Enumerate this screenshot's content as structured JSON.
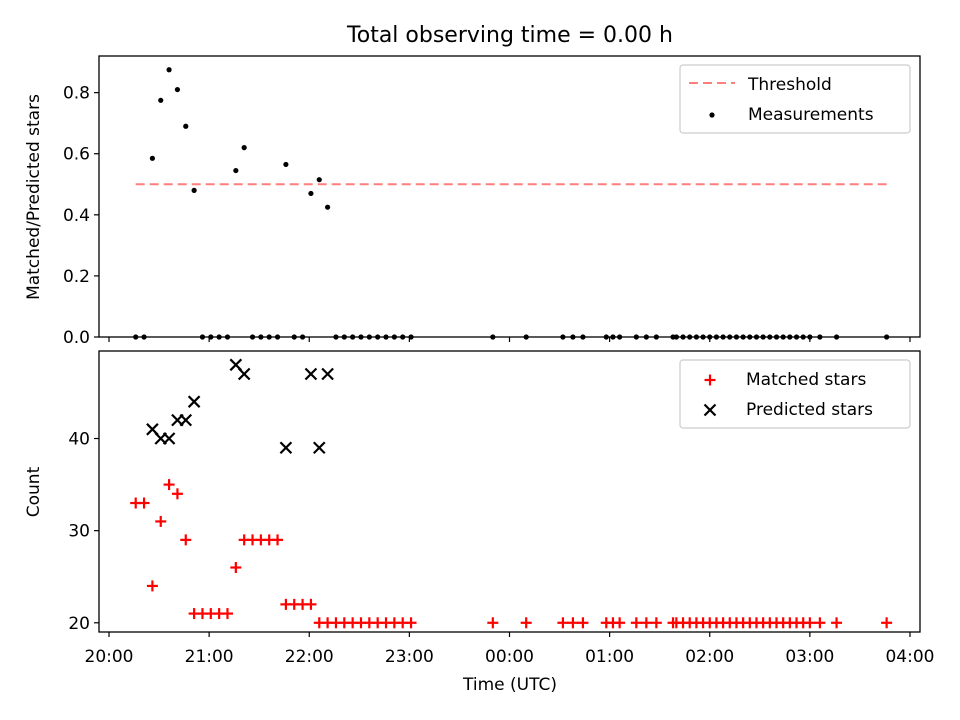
{
  "chart_data": [
    {
      "type": "scatter",
      "title": "Total observing time = 0.00 h",
      "xlabel": "",
      "ylabel": "Matched/Predicted stars",
      "xlim": [
        "19:54",
        "04:06"
      ],
      "ylim": [
        0,
        0.92
      ],
      "yticks": [
        "0.0",
        "0.2",
        "0.4",
        "0.6",
        "0.8"
      ],
      "grid": false,
      "legend_position": "upper right",
      "threshold": {
        "name": "Threshold",
        "color": "#ff7f7f",
        "value": 0.5,
        "x_range": [
          "20:16",
          "03:46"
        ]
      },
      "series": [
        {
          "name": "Measurements",
          "color": "#000000",
          "x": [
            "20:16",
            "20:21",
            "20:26",
            "20:31",
            "20:36",
            "20:41",
            "20:46",
            "20:51",
            "20:56",
            "21:01",
            "21:06",
            "21:11",
            "21:16",
            "21:21",
            "21:26",
            "21:31",
            "21:36",
            "21:41",
            "21:46",
            "21:51",
            "21:56",
            "22:01",
            "22:06",
            "22:11",
            "22:16",
            "22:21",
            "22:26",
            "22:31",
            "22:36",
            "22:41",
            "22:46",
            "22:51",
            "22:56",
            "23:01",
            "23:50",
            "00:10",
            "00:32",
            "00:38",
            "00:44",
            "00:58",
            "01:02",
            "01:06",
            "01:16",
            "01:22",
            "01:28",
            "01:38",
            "01:40",
            "01:44",
            "01:48",
            "01:52",
            "01:56",
            "02:00",
            "02:04",
            "02:08",
            "02:12",
            "02:16",
            "02:20",
            "02:24",
            "02:28",
            "02:32",
            "02:36",
            "02:40",
            "02:44",
            "02:48",
            "02:52",
            "02:56",
            "03:00",
            "03:06",
            "03:16",
            "03:46"
          ],
          "y": [
            0,
            0,
            0.585,
            0.775,
            0.875,
            0.81,
            0.69,
            0.48,
            0,
            0,
            0,
            0,
            0.545,
            0.62,
            0,
            0,
            0,
            0,
            0.565,
            0,
            0,
            0.47,
            0.515,
            0.425,
            0,
            0,
            0,
            0,
            0,
            0,
            0,
            0,
            0,
            0,
            0,
            0,
            0,
            0,
            0,
            0,
            0,
            0,
            0,
            0,
            0,
            0,
            0,
            0,
            0,
            0,
            0,
            0,
            0,
            0,
            0,
            0,
            0,
            0,
            0,
            0,
            0,
            0,
            0,
            0,
            0,
            0,
            0,
            0,
            0,
            0
          ]
        }
      ]
    },
    {
      "type": "scatter",
      "title": "",
      "xlabel": "Time (UTC)",
      "ylabel": "Count",
      "xlim": [
        "19:54",
        "04:06"
      ],
      "xticks": [
        "20:00",
        "21:00",
        "22:00",
        "23:00",
        "00:00",
        "01:00",
        "02:00",
        "03:00",
        "04:00"
      ],
      "ylim": [
        19,
        49.5
      ],
      "yticks": [
        "20",
        "30",
        "40"
      ],
      "grid": false,
      "legend_position": "upper right",
      "series": [
        {
          "name": "Matched stars",
          "color": "#ff0000",
          "marker": "+",
          "x": [
            "20:16",
            "20:21",
            "20:26",
            "20:31",
            "20:36",
            "20:41",
            "20:46",
            "20:51",
            "20:56",
            "21:01",
            "21:06",
            "21:11",
            "21:16",
            "21:21",
            "21:26",
            "21:31",
            "21:36",
            "21:41",
            "21:46",
            "21:51",
            "21:56",
            "22:01",
            "22:06",
            "22:11",
            "22:16",
            "22:21",
            "22:26",
            "22:31",
            "22:36",
            "22:41",
            "22:46",
            "22:51",
            "22:56",
            "23:01",
            "23:50",
            "00:10",
            "00:32",
            "00:38",
            "00:44",
            "00:58",
            "01:02",
            "01:06",
            "01:16",
            "01:22",
            "01:28",
            "01:38",
            "01:40",
            "01:44",
            "01:48",
            "01:52",
            "01:56",
            "02:00",
            "02:04",
            "02:08",
            "02:12",
            "02:16",
            "02:20",
            "02:24",
            "02:28",
            "02:32",
            "02:36",
            "02:40",
            "02:44",
            "02:48",
            "02:52",
            "02:56",
            "03:00",
            "03:06",
            "03:16",
            "03:46"
          ],
          "y": [
            33,
            33,
            24,
            31,
            35,
            34,
            29,
            21,
            21,
            21,
            21,
            21,
            26,
            29,
            29,
            29,
            29,
            29,
            22,
            22,
            22,
            22,
            20,
            20,
            20,
            20,
            20,
            20,
            20,
            20,
            20,
            20,
            20,
            20,
            20,
            20,
            20,
            20,
            20,
            20,
            20,
            20,
            20,
            20,
            20,
            20,
            20,
            20,
            20,
            20,
            20,
            20,
            20,
            20,
            20,
            20,
            20,
            20,
            20,
            20,
            20,
            20,
            20,
            20,
            20,
            20,
            20,
            20,
            20,
            20
          ]
        },
        {
          "name": "Predicted stars",
          "color": "#000000",
          "marker": "x",
          "x": [
            "20:26",
            "20:31",
            "20:36",
            "20:41",
            "20:46",
            "20:51",
            "21:16",
            "21:21",
            "21:46",
            "22:01",
            "22:06",
            "22:11"
          ],
          "y": [
            41,
            40,
            40,
            42,
            42,
            44,
            48,
            47,
            39,
            47,
            39,
            47
          ]
        }
      ]
    }
  ]
}
